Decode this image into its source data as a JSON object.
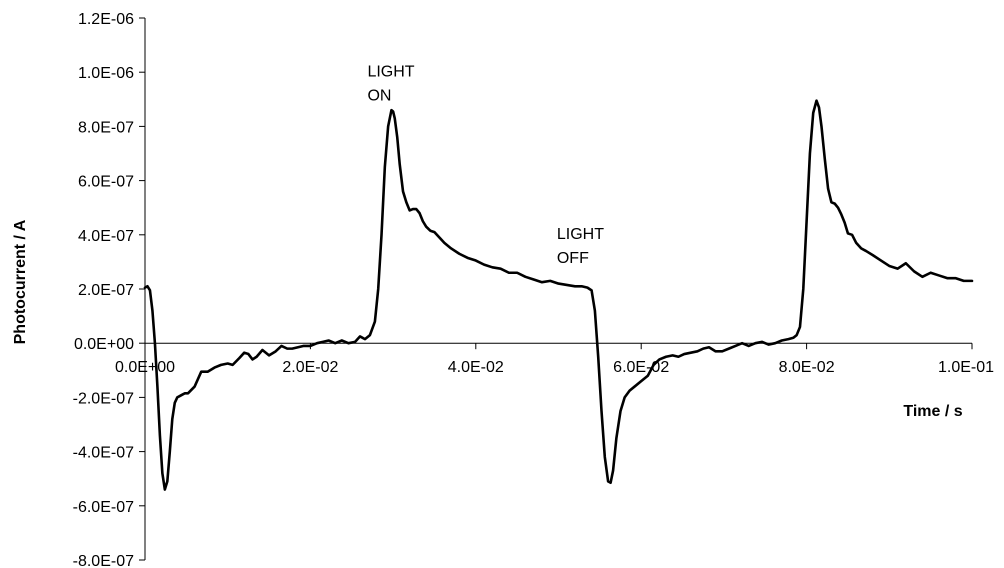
{
  "chart_data": {
    "type": "line",
    "xlabel": "Time / s",
    "ylabel": "Photocurrent / A",
    "xlim": [
      0,
      0.1
    ],
    "ylim": [
      -8e-07,
      1.2e-06
    ],
    "x_ticks": [
      0,
      0.02,
      0.04,
      0.06,
      0.08,
      0.1
    ],
    "x_tick_labels": [
      "0.0E+00",
      "2.0E-02",
      "4.0E-02",
      "6.0E-02",
      "8.0E-02",
      "1.0E-01"
    ],
    "y_ticks": [
      1.2e-06,
      1e-06,
      8e-07,
      6e-07,
      4e-07,
      2e-07,
      0,
      -2e-07,
      -4e-07,
      -6e-07,
      -8e-07
    ],
    "y_tick_labels": [
      "1.2E-06",
      "1.0E-06",
      "8.0E-07",
      "6.0E-07",
      "4.0E-07",
      "2.0E-07",
      "0.0E+00",
      "-2.0E-07",
      "-4.0E-07",
      "-6.0E-07",
      "-8.0E-07"
    ],
    "grid": false,
    "annotations": [
      {
        "line1": "LIGHT",
        "line2": "ON",
        "x": 0.0269,
        "y": 9.85e-07
      },
      {
        "line1": "LIGHT",
        "line2": "OFF",
        "x": 0.0498,
        "y": 3.85e-07
      }
    ],
    "series": [
      {
        "color": "#000000",
        "x": [
          0,
          0.0003,
          0.0006,
          0.0009,
          0.0012,
          0.0015,
          0.0018,
          0.0021,
          0.0024,
          0.0027,
          0.003,
          0.0033,
          0.0036,
          0.0039,
          0.0042,
          0.0045,
          0.0048,
          0.0052,
          0.006,
          0.0068,
          0.0076,
          0.0084,
          0.0092,
          0.01,
          0.0106,
          0.0114,
          0.012,
          0.0125,
          0.013,
          0.0135,
          0.0142,
          0.015,
          0.0158,
          0.0165,
          0.0172,
          0.0178,
          0.0185,
          0.0192,
          0.02,
          0.0208,
          0.0215,
          0.0222,
          0.023,
          0.0238,
          0.0246,
          0.0254,
          0.026,
          0.0266,
          0.0272,
          0.0278,
          0.0282,
          0.0286,
          0.029,
          0.0294,
          0.0298,
          0.03,
          0.0302,
          0.0305,
          0.0308,
          0.0312,
          0.0316,
          0.032,
          0.0324,
          0.0328,
          0.0332,
          0.0336,
          0.034,
          0.0345,
          0.035,
          0.0356,
          0.0362,
          0.037,
          0.038,
          0.039,
          0.04,
          0.041,
          0.042,
          0.043,
          0.044,
          0.045,
          0.046,
          0.047,
          0.048,
          0.049,
          0.05,
          0.051,
          0.052,
          0.0528,
          0.0535,
          0.054,
          0.0544,
          0.0548,
          0.0552,
          0.0556,
          0.056,
          0.0563,
          0.0566,
          0.057,
          0.0575,
          0.058,
          0.0586,
          0.0592,
          0.06,
          0.0608,
          0.0615,
          0.0622,
          0.063,
          0.0638,
          0.0645,
          0.0652,
          0.066,
          0.0668,
          0.0675,
          0.0682,
          0.069,
          0.0698,
          0.0706,
          0.0714,
          0.0722,
          0.073,
          0.0738,
          0.0746,
          0.0754,
          0.0762,
          0.077,
          0.0778,
          0.0784,
          0.0788,
          0.0792,
          0.0796,
          0.08,
          0.0804,
          0.0808,
          0.0812,
          0.0815,
          0.0818,
          0.0822,
          0.0826,
          0.083,
          0.0834,
          0.0838,
          0.0842,
          0.0846,
          0.085,
          0.0855,
          0.086,
          0.0866,
          0.0872,
          0.088,
          0.089,
          0.09,
          0.091,
          0.092,
          0.093,
          0.094,
          0.095,
          0.096,
          0.097,
          0.098,
          0.099,
          0.1
        ],
        "y": [
          2.05e-07,
          2.1e-07,
          1.95e-07,
          1.2e-07,
          0,
          -1.6e-07,
          -3.4e-07,
          -4.8e-07,
          -5.4e-07,
          -5.1e-07,
          -4e-07,
          -2.8e-07,
          -2.2e-07,
          -2e-07,
          -1.95e-07,
          -1.9e-07,
          -1.85e-07,
          -1.85e-07,
          -1.6e-07,
          -1.05e-07,
          -1.05e-07,
          -9e-08,
          -8e-08,
          -7.5e-08,
          -8e-08,
          -5.5e-08,
          -3.5e-08,
          -4e-08,
          -6e-08,
          -5e-08,
          -2.5e-08,
          -4.5e-08,
          -3e-08,
          -1e-08,
          -2e-08,
          -2e-08,
          -1.5e-08,
          -1e-08,
          -1e-08,
          0,
          5e-09,
          1e-08,
          0,
          1e-08,
          0,
          5e-09,
          2.5e-08,
          1.5e-08,
          3e-08,
          8e-08,
          2e-07,
          4e-07,
          6.5e-07,
          8e-07,
          8.6e-07,
          8.55e-07,
          8.3e-07,
          7.6e-07,
          6.6e-07,
          5.6e-07,
          5.2e-07,
          4.9e-07,
          4.95e-07,
          4.95e-07,
          4.8e-07,
          4.5e-07,
          4.3e-07,
          4.15e-07,
          4.1e-07,
          3.9e-07,
          3.7e-07,
          3.5e-07,
          3.3e-07,
          3.15e-07,
          3.05e-07,
          2.9e-07,
          2.8e-07,
          2.75e-07,
          2.6e-07,
          2.6e-07,
          2.45e-07,
          2.35e-07,
          2.25e-07,
          2.3e-07,
          2.2e-07,
          2.15e-07,
          2.1e-07,
          2.1e-07,
          2.05e-07,
          1.95e-07,
          1.2e-07,
          -5e-08,
          -2.5e-07,
          -4.2e-07,
          -5.1e-07,
          -5.15e-07,
          -4.7e-07,
          -3.5e-07,
          -2.5e-07,
          -2e-07,
          -1.75e-07,
          -1.6e-07,
          -1.4e-07,
          -1.2e-07,
          -8e-08,
          -6e-08,
          -5e-08,
          -4.5e-08,
          -5e-08,
          -4e-08,
          -3.5e-08,
          -3e-08,
          -2e-08,
          -1.5e-08,
          -3e-08,
          -3e-08,
          -2e-08,
          -1e-08,
          0,
          -1e-08,
          0,
          5e-09,
          -5e-09,
          0,
          1e-08,
          1.5e-08,
          2e-08,
          3e-08,
          6e-08,
          2e-07,
          4.5e-07,
          7e-07,
          8.5e-07,
          8.95e-07,
          8.7e-07,
          8e-07,
          6.8e-07,
          5.7e-07,
          5.2e-07,
          5.15e-07,
          5e-07,
          4.75e-07,
          4.45e-07,
          4.05e-07,
          4e-07,
          3.7e-07,
          3.5e-07,
          3.4e-07,
          3.25e-07,
          3.05e-07,
          2.85e-07,
          2.75e-07,
          2.95e-07,
          2.65e-07,
          2.45e-07,
          2.6e-07,
          2.5e-07,
          2.4e-07,
          2.4e-07,
          2.3e-07,
          2.3e-07
        ]
      }
    ]
  }
}
